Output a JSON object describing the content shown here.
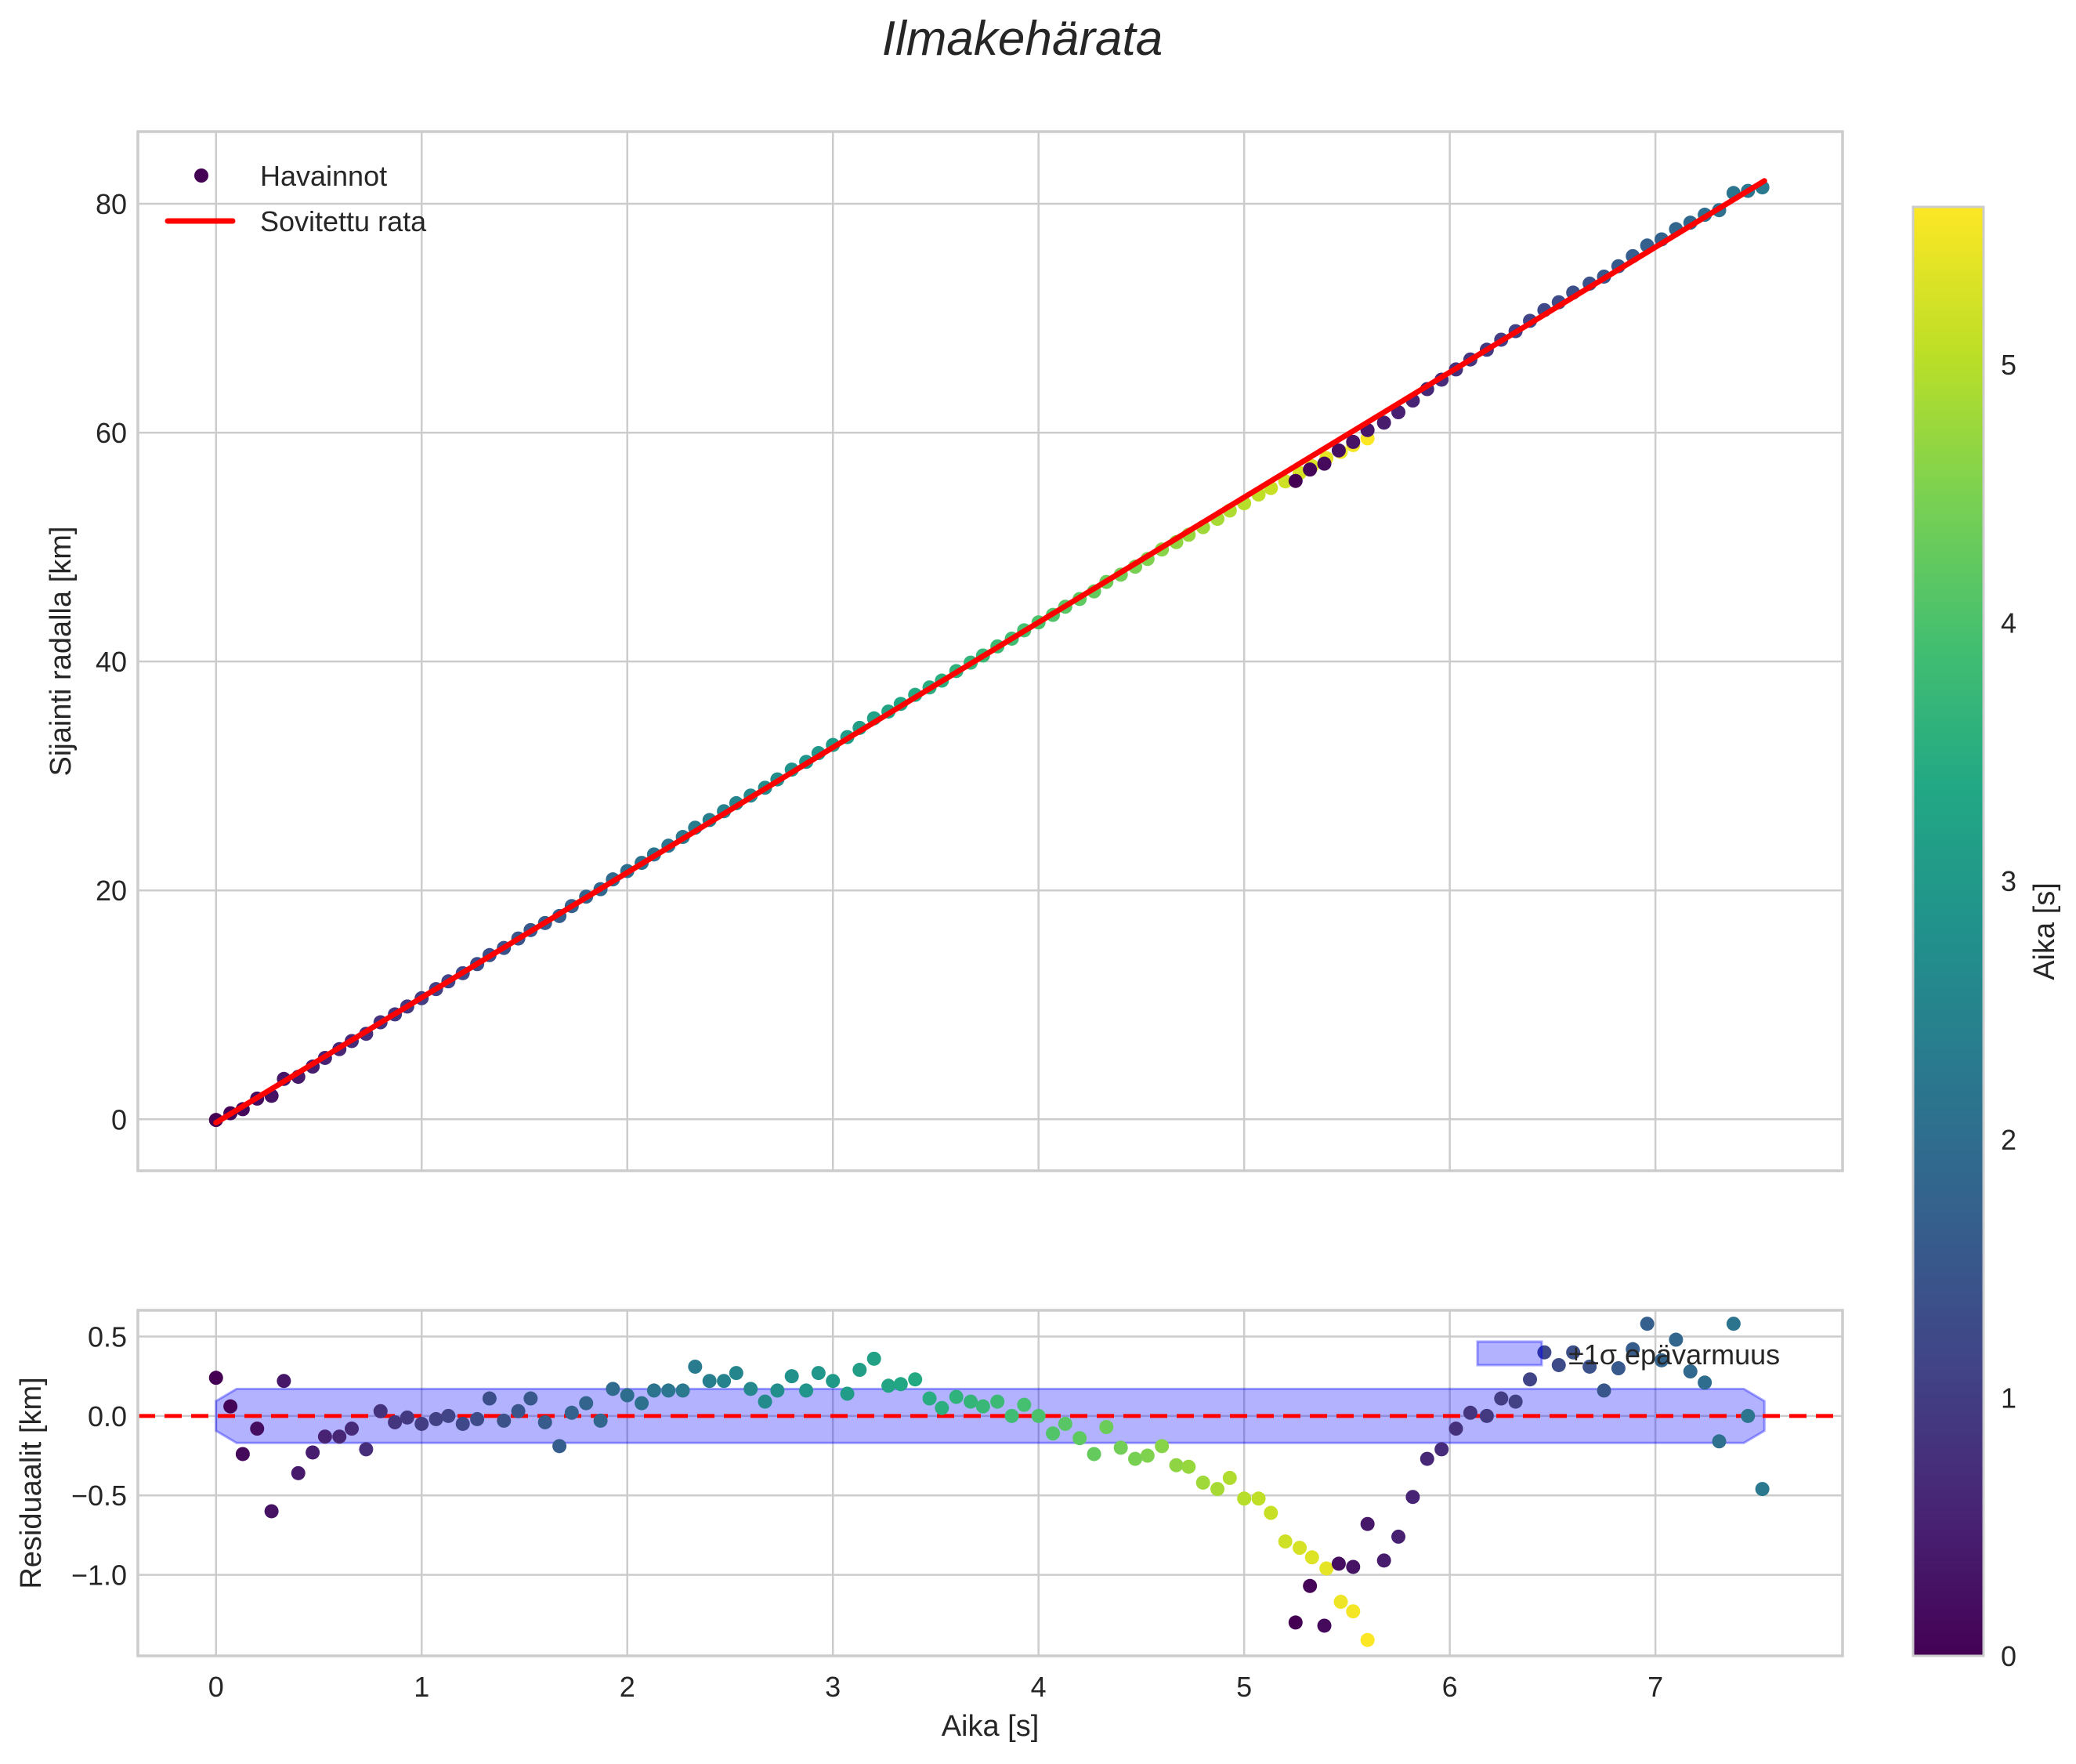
{
  "figure": {
    "title": "Ilmakehärata"
  },
  "main_axes": {
    "ylabel": "Sijainti radalla [km]",
    "yticks": [
      0,
      20,
      40,
      60,
      80
    ],
    "xticks": [
      0,
      1,
      2,
      3,
      4,
      5,
      6,
      7
    ],
    "xlim": [
      -0.38,
      7.91
    ],
    "ylim": [
      -4.5,
      86.3
    ],
    "legend": [
      {
        "label": "Havainnot",
        "type": "marker",
        "color": "#440154"
      },
      {
        "label": "Sovitettu rata",
        "type": "line",
        "color": "#ff0000"
      }
    ]
  },
  "residual_axes": {
    "ylabel": "Residuaalit [km]",
    "xlabel": "Aika [s]",
    "yticks": [
      0.5,
      0.0,
      -0.5,
      -1.0
    ],
    "ytick_labels": [
      "0.5",
      "0.0",
      "−0.5",
      "−1.0"
    ],
    "xticks": [
      0,
      1,
      2,
      3,
      4,
      5,
      6,
      7
    ],
    "xlim": [
      -0.38,
      7.91
    ],
    "ylim": [
      -1.51,
      0.665
    ],
    "legend": [
      {
        "label": "±1σ epävarmuus",
        "type": "patch",
        "color": "#b0b0ff"
      }
    ],
    "sigma_band": 0.17,
    "zero_line_color": "#ff0000"
  },
  "colorbar": {
    "label": "Aika [s]",
    "ticks": [
      0,
      1,
      2,
      3,
      4,
      5
    ],
    "range": [
      0,
      5.61
    ],
    "colormap": "viridis"
  },
  "chart_data": {
    "type": "scatter",
    "title": "Ilmakehärata",
    "xlabel": "Aika [s]",
    "ylabel": "Sijainti radalla [km]",
    "ylabel_residual": "Residuaalit [km]",
    "colorbar_label": "Aika [s]",
    "fit": {
      "name": "Sovitettu rata",
      "t_start": 0.0,
      "y_start": -0.3,
      "t_end": 7.53,
      "y_end": 82.0
    },
    "series": [
      {
        "name": "Havainnot (segment 1)",
        "t": [
          0.0,
          0.07,
          0.13,
          0.2,
          0.27,
          0.33,
          0.4,
          0.47,
          0.53,
          0.6,
          0.66,
          0.73,
          0.8,
          0.87,
          0.93,
          1.0,
          1.07,
          1.13,
          1.2,
          1.27,
          1.33,
          1.4,
          1.47,
          1.53,
          1.6,
          1.67,
          1.73,
          1.8,
          1.87,
          1.93,
          2.0,
          2.07,
          2.13,
          2.2,
          2.27,
          2.33,
          2.4,
          2.47,
          2.53,
          2.6,
          2.67,
          2.73,
          2.8,
          2.87,
          2.93,
          3.0,
          3.07,
          3.13,
          3.2,
          3.27,
          3.33,
          3.4,
          3.47,
          3.53,
          3.6,
          3.67,
          3.73,
          3.8,
          3.87,
          3.93,
          4.0,
          4.07,
          4.13,
          4.2,
          4.27,
          4.33,
          4.4,
          4.47,
          4.53,
          4.6,
          4.67,
          4.73,
          4.8,
          4.87,
          4.93,
          5.0,
          5.07,
          5.13,
          5.2,
          5.27,
          5.33,
          5.4,
          5.47,
          5.53,
          5.6
        ],
        "residual": [
          0.24,
          0.06,
          -0.24,
          -0.08,
          -0.6,
          0.22,
          -0.36,
          -0.23,
          -0.13,
          -0.13,
          -0.08,
          -0.21,
          0.03,
          -0.04,
          -0.01,
          -0.05,
          -0.02,
          0.0,
          -0.05,
          -0.02,
          0.11,
          -0.03,
          0.03,
          0.11,
          -0.04,
          -0.19,
          0.02,
          0.08,
          -0.03,
          0.17,
          0.13,
          0.08,
          0.16,
          0.16,
          0.16,
          0.31,
          0.22,
          0.22,
          0.27,
          0.17,
          0.09,
          0.16,
          0.25,
          0.16,
          0.27,
          0.22,
          0.14,
          0.29,
          0.36,
          0.19,
          0.2,
          0.23,
          0.11,
          0.05,
          0.12,
          0.09,
          0.06,
          0.09,
          0.0,
          0.07,
          0.0,
          -0.11,
          -0.05,
          -0.14,
          -0.24,
          -0.07,
          -0.2,
          -0.27,
          -0.25,
          -0.19,
          -0.31,
          -0.32,
          -0.42,
          -0.46,
          -0.39,
          -0.52,
          -0.52,
          -0.61,
          -0.79,
          -0.83,
          -0.89,
          -0.96,
          -1.17,
          -1.23,
          -1.41
        ],
        "color_value_start": 0.0,
        "color_value_end": 5.6
      },
      {
        "name": "Havainnot (segment 2)",
        "t": [
          5.25,
          5.32,
          5.39,
          5.46,
          5.53,
          5.6,
          5.68,
          5.75,
          5.82,
          5.89,
          5.96,
          6.03,
          6.1,
          6.18,
          6.25,
          6.32,
          6.39,
          6.46,
          6.53,
          6.6,
          6.68,
          6.75,
          6.82,
          6.89,
          6.96,
          7.03,
          7.1,
          7.17,
          7.24,
          7.31,
          7.38,
          7.45,
          7.52
        ],
        "residual": [
          -1.3,
          -1.07,
          -1.32,
          -0.93,
          -0.95,
          -0.68,
          -0.91,
          -0.76,
          -0.51,
          -0.27,
          -0.21,
          -0.08,
          0.02,
          0.0,
          0.11,
          0.09,
          0.23,
          0.4,
          0.32,
          0.4,
          0.31,
          0.16,
          0.3,
          0.42,
          0.58,
          0.35,
          0.48,
          0.28,
          0.21,
          -0.16,
          0.58,
          0.0,
          -0.46
        ],
        "color_value_start": 0.0,
        "color_value_end": 2.27
      }
    ],
    "legend": [
      "Havainnot",
      "Sovitettu rata",
      "±1σ epävarmuus"
    ],
    "xlim": [
      -0.38,
      7.91
    ],
    "ylim": [
      -4.5,
      86.3
    ],
    "ylim_residual": [
      -1.51,
      0.665
    ],
    "grid": true
  }
}
